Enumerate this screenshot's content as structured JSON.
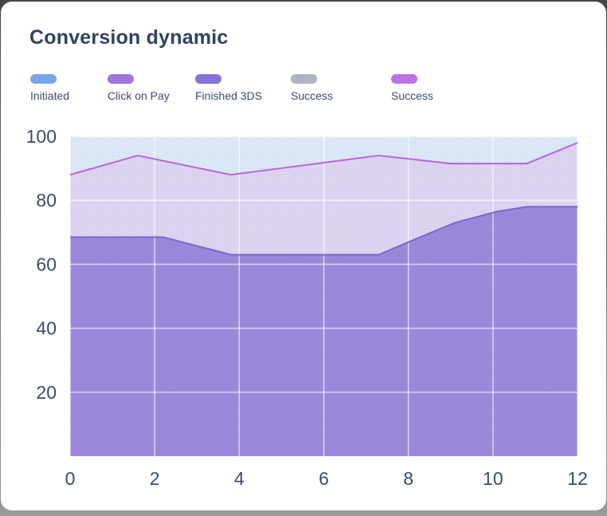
{
  "card": {
    "title": "Conversion dynamic"
  },
  "legend": {
    "items": [
      {
        "label": "Initiated",
        "color": "#79a5e8",
        "dotted": false
      },
      {
        "label": "Click on Pay",
        "color": "#a97ae8",
        "dotted": true
      },
      {
        "label": "Finished 3DS",
        "color": "#8d79e0",
        "dotted": true
      },
      {
        "label": "Success",
        "color": "#b9bdc9",
        "dotted": true
      },
      {
        "label": "Success",
        "color": "#bd72e4",
        "dotted": false
      }
    ]
  },
  "chart_data": {
    "type": "area",
    "title": "Conversion dynamic",
    "xlabel": "",
    "ylabel": "",
    "xlim": [
      0,
      12
    ],
    "ylim": [
      0,
      100
    ],
    "xticks": [
      0,
      2,
      4,
      6,
      8,
      10,
      12
    ],
    "yticks": [
      20,
      40,
      60,
      80,
      100
    ],
    "grid": true,
    "legend_position": "top",
    "axis_color": "#3b4a6b",
    "gridline_color": "rgba(255,255,255,0.65)",
    "series": [
      {
        "key": "initiated",
        "name": "Initiated",
        "x": [
          0,
          12
        ],
        "values": [
          100,
          100
        ],
        "fill": "#dce8f6",
        "line": "none"
      },
      {
        "key": "success",
        "name": "Success",
        "x": [
          0,
          1.6,
          3.8,
          7.3,
          9,
          10.8,
          12
        ],
        "values": [
          88,
          94,
          88,
          94,
          91.5,
          91.5,
          98
        ],
        "fill": "#ded4f1",
        "line": "#b667dd"
      },
      {
        "key": "finished-3ds",
        "name": "Finished 3DS",
        "x": [
          0,
          2.2,
          3.8,
          7.3,
          8.1,
          9.1,
          10.1,
          10.8,
          12
        ],
        "values": [
          68.5,
          68.5,
          63,
          63,
          67.5,
          73,
          76.5,
          78,
          78
        ],
        "fill": "#9c88da",
        "line": "#7c64ce"
      }
    ]
  }
}
